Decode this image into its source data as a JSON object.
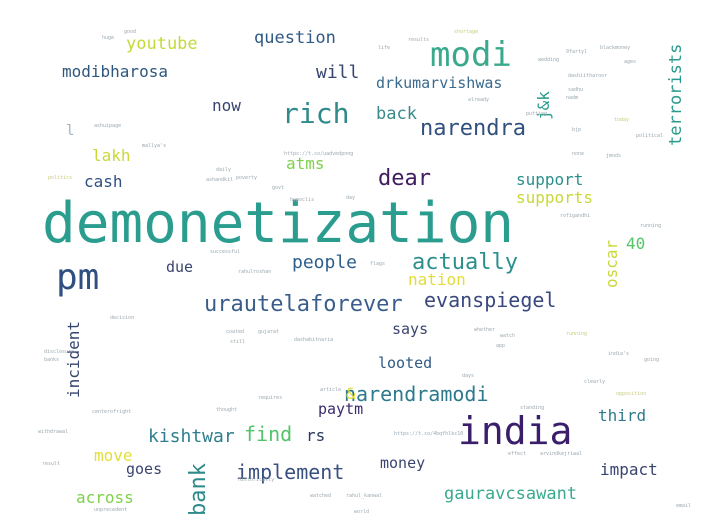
{
  "words": [
    {
      "text": "demonetization",
      "color": "#2a9d8f"
    },
    {
      "text": "modi",
      "color": "#3aa98e"
    },
    {
      "text": "india",
      "color": "#3b1e6b"
    },
    {
      "text": "pm",
      "color": "#2f4f80"
    },
    {
      "text": "rich",
      "color": "#2f8a8c"
    },
    {
      "text": "narendra",
      "color": "#31507e"
    },
    {
      "text": "urautelaforever",
      "color": "#3a5d8c"
    },
    {
      "text": "actually",
      "color": "#2a8f8c"
    },
    {
      "text": "evanspiegel",
      "color": "#39487f"
    },
    {
      "text": "narendramodi",
      "color": "#2c7a8c"
    },
    {
      "text": "implement",
      "color": "#3a5080"
    },
    {
      "text": "people",
      "color": "#2e5e8c"
    },
    {
      "text": "dear",
      "color": "#3e1c5e"
    },
    {
      "text": "kishtwar",
      "color": "#2e7e8e"
    },
    {
      "text": "find",
      "color": "#52c46a"
    },
    {
      "text": "bank",
      "color": "#2e8a8a"
    },
    {
      "text": "gauravcsawant",
      "color": "#3aa98e"
    },
    {
      "text": "question",
      "color": "#2f5a85"
    },
    {
      "text": "youtube",
      "color": "#c5d93a"
    },
    {
      "text": "modibharosa",
      "color": "#2f567f"
    },
    {
      "text": "will",
      "color": "#37466f"
    },
    {
      "text": "drkumarvishwas",
      "color": "#3a6a8c"
    },
    {
      "text": "terrorists",
      "color": "#2a9a8c"
    },
    {
      "text": "j&k",
      "color": "#2a9a8c"
    },
    {
      "text": "back",
      "color": "#3a8a8c"
    },
    {
      "text": "lakh",
      "color": "#c9d83a"
    },
    {
      "text": "cash",
      "color": "#2f5080"
    },
    {
      "text": "atms",
      "color": "#7fd04a"
    },
    {
      "text": "now",
      "color": "#3a4470"
    },
    {
      "text": "support",
      "color": "#2a8f8c"
    },
    {
      "text": "supports",
      "color": "#c9d83a"
    },
    {
      "text": "40",
      "color": "#52c46a"
    },
    {
      "text": "oscar",
      "color": "#c9d83a"
    },
    {
      "text": "due",
      "color": "#3a4470"
    },
    {
      "text": "nation",
      "color": "#e3dd3a"
    },
    {
      "text": "incident",
      "color": "#37466f"
    },
    {
      "text": "says",
      "color": "#3a4470"
    },
    {
      "text": "looted",
      "color": "#2f5a85"
    },
    {
      "text": "&",
      "color": "#e3dd3a"
    },
    {
      "text": "paytm",
      "color": "#3a2b6b"
    },
    {
      "text": "third",
      "color": "#2f7a8c"
    },
    {
      "text": "rs",
      "color": "#2a3a5e"
    },
    {
      "text": "move",
      "color": "#e3dd3a"
    },
    {
      "text": "goes",
      "color": "#3a4470"
    },
    {
      "text": "money",
      "color": "#3a4470"
    },
    {
      "text": "impact",
      "color": "#3a4470"
    },
    {
      "text": "across",
      "color": "#7fd04a"
    },
    {
      "text": "l",
      "color": "#9fb0c0"
    },
    {
      "text": "huge",
      "color": "#9aa8b0"
    },
    {
      "text": "good",
      "color": "#9aa8b0"
    },
    {
      "text": "results",
      "color": "#9aa8b0"
    },
    {
      "text": "life",
      "color": "#9aa8b0"
    },
    {
      "text": "shortage",
      "color": "#c8cc7a"
    },
    {
      "text": "9fartyl",
      "color": "#9aa8b0"
    },
    {
      "text": "blackmoney",
      "color": "#9aa8b0"
    },
    {
      "text": "wedding",
      "color": "#9aa8b0"
    },
    {
      "text": "dashiitharoor",
      "color": "#9aa8b0"
    },
    {
      "text": "ages",
      "color": "#9aa8b0"
    },
    {
      "text": "sadhu",
      "color": "#9aa8b0"
    },
    {
      "text": "nadm",
      "color": "#9aa8b0"
    },
    {
      "text": "today",
      "color": "#c8cc7a"
    },
    {
      "text": "political",
      "color": "#9aa8b0"
    },
    {
      "text": "jmods",
      "color": "#9aa8b0"
    },
    {
      "text": "putting",
      "color": "#9aa8b0"
    },
    {
      "text": "already",
      "color": "#9aa8b0"
    },
    {
      "text": "bjp",
      "color": "#9aa8b0"
    },
    {
      "text": "none",
      "color": "#9aa8b0"
    },
    {
      "text": "https://t.co/uadvedpnng",
      "color": "#9aa8b0"
    },
    {
      "text": "ashuipage",
      "color": "#9aa8b0"
    },
    {
      "text": "mallya's",
      "color": "#9aa8b0"
    },
    {
      "text": "politics",
      "color": "#c8cc7a"
    },
    {
      "text": "poverty",
      "color": "#9aa8b0"
    },
    {
      "text": "ashandkil",
      "color": "#9aa8b0"
    },
    {
      "text": "daily",
      "color": "#9aa8b0"
    },
    {
      "text": "govt",
      "color": "#9aa8b0"
    },
    {
      "text": "hypoclis",
      "color": "#9aa8b0"
    },
    {
      "text": "day",
      "color": "#9aa8b0"
    },
    {
      "text": "rofigandhi",
      "color": "#9aa8b0"
    },
    {
      "text": "successful",
      "color": "#9aa8b0"
    },
    {
      "text": "running",
      "color": "#9aa8b0"
    },
    {
      "text": "rahulroshan",
      "color": "#9aa8b0"
    },
    {
      "text": "flags",
      "color": "#9aa8b0"
    },
    {
      "text": "decision",
      "color": "#9aa8b0"
    },
    {
      "text": "coated",
      "color": "#9aa8b0"
    },
    {
      "text": "gujarat",
      "color": "#9aa8b0"
    },
    {
      "text": "whether",
      "color": "#9aa8b0"
    },
    {
      "text": "watch",
      "color": "#9aa8b0"
    },
    {
      "text": "running",
      "color": "#c8cc7a"
    },
    {
      "text": "dashabitnaria",
      "color": "#9aa8b0"
    },
    {
      "text": "still",
      "color": "#9aa8b0"
    },
    {
      "text": "app",
      "color": "#9aa8b0"
    },
    {
      "text": "india's",
      "color": "#9aa8b0"
    },
    {
      "text": "disclosure",
      "color": "#9aa8b0"
    },
    {
      "text": "banks",
      "color": "#9aa8b0"
    },
    {
      "text": "going",
      "color": "#9aa8b0"
    },
    {
      "text": "days",
      "color": "#9aa8b0"
    },
    {
      "text": "article",
      "color": "#9aa8b0"
    },
    {
      "text": "clearly",
      "color": "#9aa8b0"
    },
    {
      "text": "requires",
      "color": "#9aa8b0"
    },
    {
      "text": "standing",
      "color": "#9aa8b0"
    },
    {
      "text": "thought",
      "color": "#9aa8b0"
    },
    {
      "text": "https://t.co/4bqfhlkc10",
      "color": "#9aa8b0"
    },
    {
      "text": "withdrawal",
      "color": "#9aa8b0"
    },
    {
      "text": "result",
      "color": "#9aa8b0"
    },
    {
      "text": "effect",
      "color": "#9aa8b0"
    },
    {
      "text": "arvindkejriwal",
      "color": "#9aa8b0"
    },
    {
      "text": "historically",
      "color": "#9aa8b0"
    },
    {
      "text": "watched",
      "color": "#9aa8b0"
    },
    {
      "text": "rahul_kanwal",
      "color": "#9aa8b0"
    },
    {
      "text": "unprecedent",
      "color": "#9aa8b0"
    },
    {
      "text": "world",
      "color": "#9aa8b0"
    },
    {
      "text": "email",
      "color": "#9aa8b0"
    },
    {
      "text": "centerofright",
      "color": "#9aa8b0"
    },
    {
      "text": "opposition",
      "color": "#c8cc7a"
    }
  ]
}
